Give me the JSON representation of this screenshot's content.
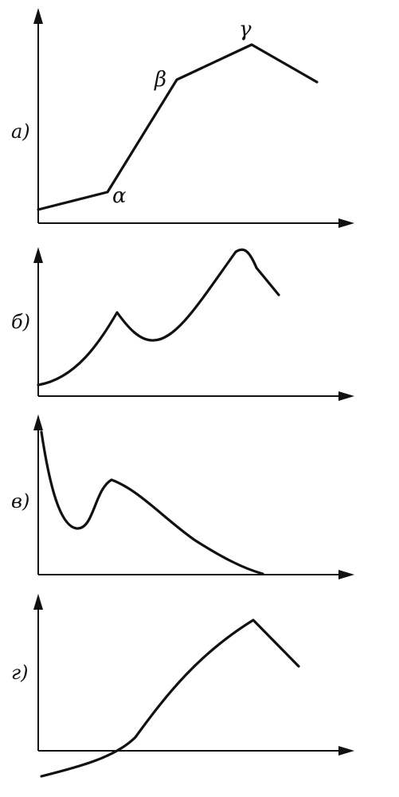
{
  "panels": [
    {
      "label": "а)",
      "points": {
        "alpha": "α",
        "beta": "β",
        "gamma": "γ"
      }
    },
    {
      "label": "б)"
    },
    {
      "label": "в)"
    },
    {
      "label": "г)"
    }
  ]
}
